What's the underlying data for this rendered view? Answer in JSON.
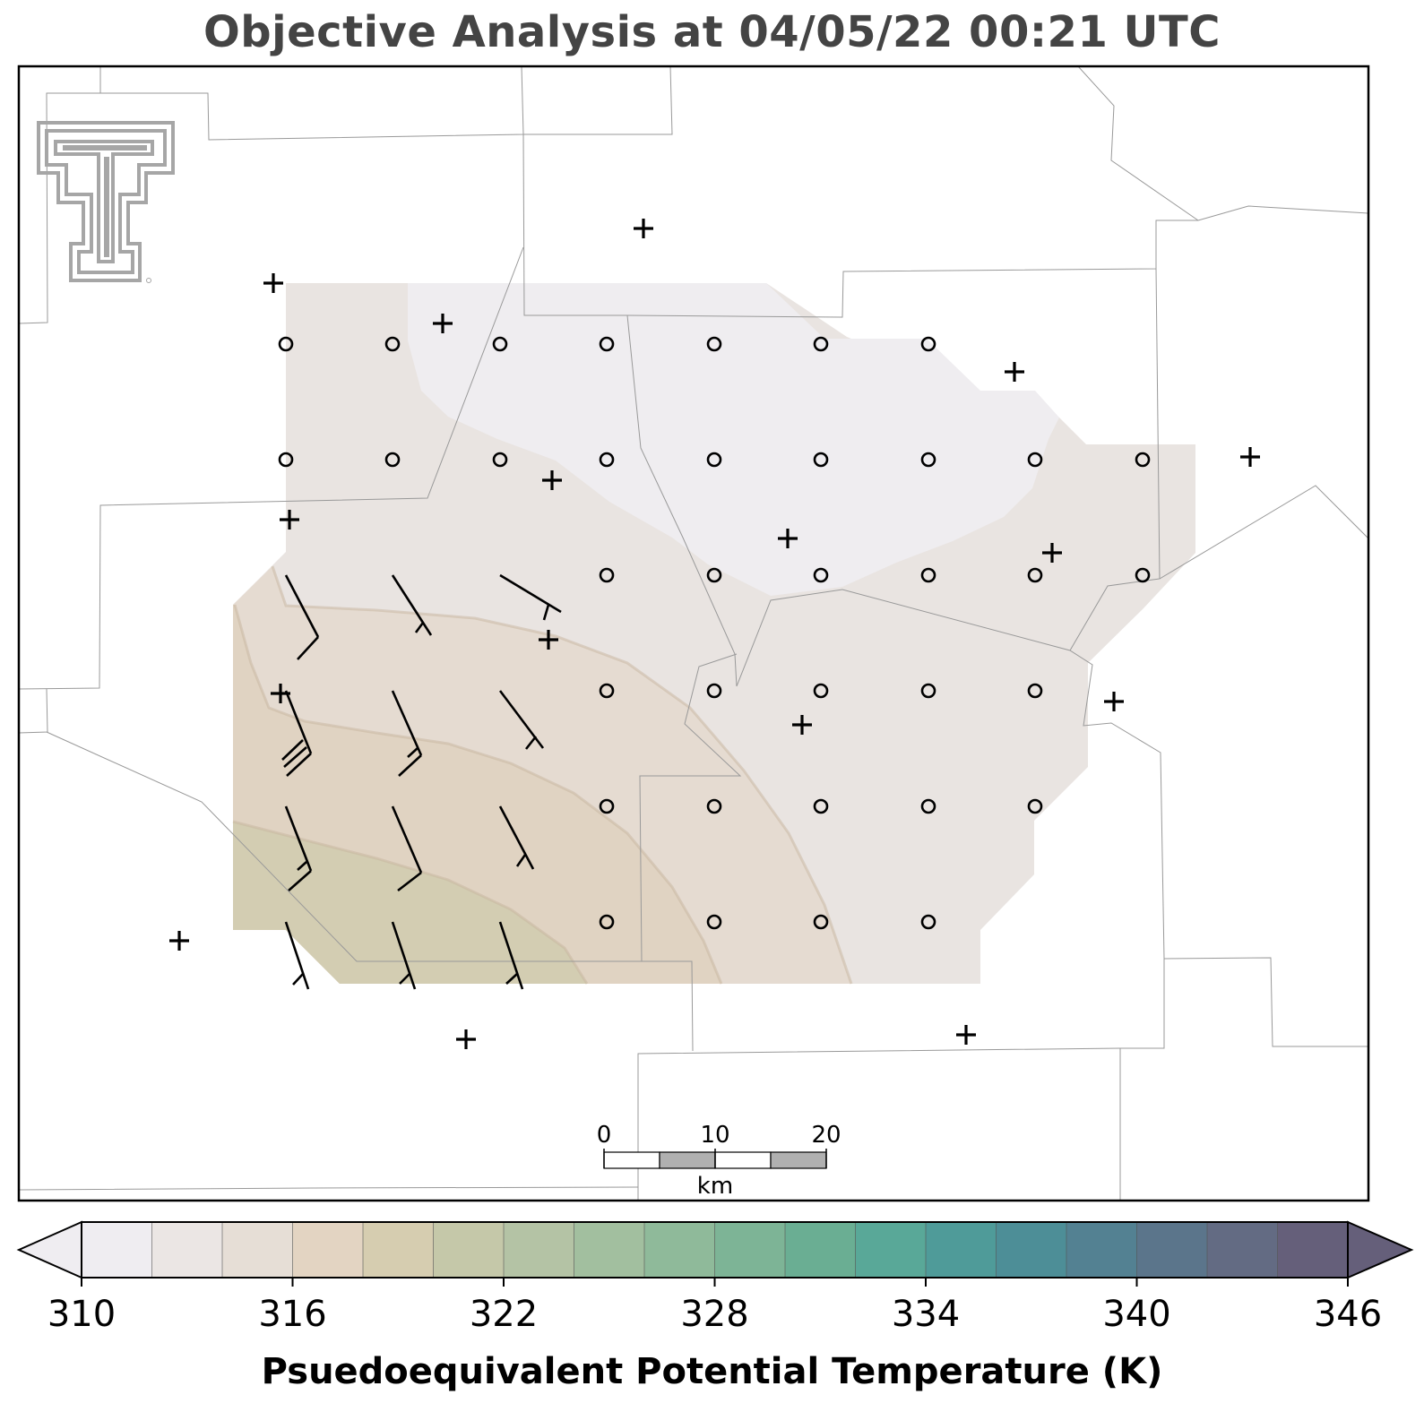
{
  "title": "Objective Analysis at 04/05/22 00:21 UTC",
  "colorbar": {
    "label": "Psuedoequivalent Potential Temperature (K)",
    "ticks": [
      "310",
      "316",
      "322",
      "328",
      "334",
      "340",
      "346"
    ],
    "range": [
      310,
      350
    ],
    "step": 2,
    "colors": [
      "#efedf1",
      "#ebe6e4",
      "#e6ded6",
      "#e3d4c2",
      "#d6cdb0",
      "#c5c8a9",
      "#b4c3a5",
      "#a2bf9f",
      "#8fba9a",
      "#7db496",
      "#6aae93",
      "#59a898",
      "#4f9b99",
      "#4d8e97",
      "#538192",
      "#5b758b",
      "#636b83",
      "#655f7a"
    ],
    "extend": "both"
  },
  "scale_bar": {
    "ticks": [
      "0",
      "10",
      "20"
    ],
    "unit": "km"
  },
  "logo": "texas-tech-double-t-logo",
  "stations_missing_marker": "+",
  "grid_marker_calm": "circle",
  "field_levels_K": [
    "312-314",
    "314-316",
    "316-318",
    "318-320"
  ]
}
